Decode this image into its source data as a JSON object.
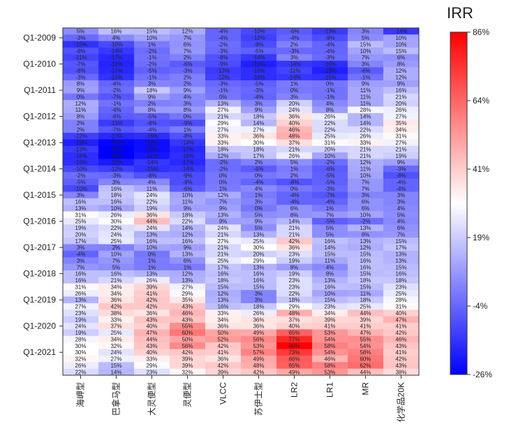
{
  "chart_data": {
    "type": "heatmap",
    "colorbar_title": "IRR",
    "colorbar_ticks": [
      "86%",
      "64%",
      "41%",
      "19%",
      "-4%",
      "-26%"
    ],
    "color_range": [
      -26,
      86
    ],
    "colors": {
      "low": "#0000ff",
      "mid": "#ffffff",
      "high": "#ff0000"
    },
    "columns": [
      "海岬型",
      "巴拿马型",
      "大灵便型",
      "灵便型",
      "VLCC",
      "苏伊士型",
      "LR2",
      "LR1",
      "MR",
      "化学品20K"
    ],
    "row_labels": [
      {
        "row": 1,
        "label": "Q1-2009"
      },
      {
        "row": 5,
        "label": "Q1-2010"
      },
      {
        "row": 9,
        "label": "Q1-2011"
      },
      {
        "row": 13,
        "label": "Q1-2012"
      },
      {
        "row": 17,
        "label": "Q1-2013"
      },
      {
        "row": 21,
        "label": "Q1-2014"
      },
      {
        "row": 25,
        "label": "Q1-2015"
      },
      {
        "row": 29,
        "label": "Q1-2016"
      },
      {
        "row": 33,
        "label": "Q1-2017"
      },
      {
        "row": 37,
        "label": "Q1-2018"
      },
      {
        "row": 41,
        "label": "Q1-2019"
      },
      {
        "row": 45,
        "label": "Q1-2020"
      },
      {
        "row": 49,
        "label": "Q1-2021"
      }
    ],
    "values": [
      [
        5,
        16,
        15,
        12,
        -4,
        -10,
        -6,
        -13,
        3,
        -14
      ],
      [
        -3,
        4,
        10,
        7,
        -4,
        -12,
        -4,
        -9,
        5,
        10
      ],
      [
        -15,
        -10,
        1,
        6,
        -2,
        -9,
        2,
        -4,
        15,
        10
      ],
      [
        -8,
        -14,
        -2,
        7,
        -3,
        -5,
        -3,
        -4,
        10,
        15
      ],
      [
        -11,
        -17,
        -1,
        2,
        -8,
        -14,
        3,
        -3,
        7,
        6
      ],
      [
        -7,
        -18,
        -2,
        -6,
        -9,
        -19,
        -14,
        -16,
        3,
        8
      ],
      [
        -8,
        -17,
        -5,
        -3,
        -13,
        -16,
        -11,
        -19,
        -6,
        12
      ],
      [
        -3,
        -15,
        -1,
        2,
        -12,
        -16,
        -14,
        -15,
        -1,
        12
      ],
      [
        8,
        -4,
        3,
        2,
        -3,
        -5,
        1,
        0,
        9,
        9
      ],
      [
        9,
        -2,
        18,
        9,
        -1,
        -3,
        0,
        -1,
        11,
        16
      ],
      [
        0,
        -7,
        9,
        4,
        0,
        -4,
        3,
        -1,
        11,
        21
      ],
      [
        12,
        -1,
        2,
        3,
        13,
        3,
        20,
        4,
        11,
        20
      ],
      [
        11,
        -4,
        8,
        8,
        27,
        9,
        24,
        8,
        28,
        26
      ],
      [
        8,
        -6,
        -5,
        0,
        21,
        18,
        36,
        26,
        14,
        27
      ],
      [
        2,
        -13,
        -8,
        -9,
        29,
        14,
        40,
        22,
        14,
        35
      ],
      [
        2,
        -7,
        -4,
        1,
        27,
        27,
        46,
        22,
        22,
        34
      ],
      [
        -12,
        -17,
        -16,
        -8,
        33,
        36,
        48,
        25,
        26,
        31
      ],
      [
        -19,
        -25,
        -23,
        -14,
        33,
        30,
        37,
        31,
        33,
        27
      ],
      [
        -13,
        -26,
        -23,
        -17,
        18,
        18,
        21,
        20,
        21,
        21
      ],
      [
        -16,
        -28,
        -21,
        -16,
        12,
        17,
        26,
        10,
        21,
        19
      ],
      [
        -16,
        -20,
        -14,
        -17,
        -2,
        2,
        5,
        -2,
        12,
        9
      ],
      [
        -10,
        -12,
        -15,
        -14,
        -2,
        -6,
        1,
        -6,
        11,
        -3
      ],
      [
        -2,
        -3,
        -8,
        -9,
        0,
        0,
        2,
        -5,
        10,
        -8
      ],
      [
        -5,
        3,
        4,
        -9,
        0,
        -4,
        -8,
        -5,
        7,
        -4
      ],
      [
        -10,
        16,
        11,
        -6,
        1,
        4,
        0,
        -3,
        7,
        -4
      ],
      [
        3,
        18,
        24,
        10,
        12,
        1,
        -4,
        -7,
        3,
        3
      ],
      [
        16,
        16,
        22,
        11,
        7,
        3,
        -4,
        -4,
        6,
        3
      ],
      [
        13,
        10,
        19,
        9,
        9,
        0,
        6,
        1,
        6,
        4
      ],
      [
        31,
        26,
        36,
        18,
        13,
        5,
        6,
        7,
        10,
        5
      ],
      [
        25,
        30,
        44,
        22,
        9,
        9,
        14,
        -5,
        -2,
        4
      ],
      [
        19,
        22,
        24,
        14,
        24,
        5,
        21,
        5,
        13,
        6
      ],
      [
        20,
        24,
        13,
        12,
        21,
        13,
        21,
        5,
        6,
        7
      ],
      [
        17,
        25,
        16,
        16,
        27,
        25,
        42,
        16,
        13,
        15
      ],
      [
        3,
        2,
        10,
        9,
        21,
        30,
        36,
        14,
        12,
        17
      ],
      [
        -4,
        10,
        0,
        13,
        21,
        20,
        23,
        15,
        15,
        13
      ],
      [
        3,
        7,
        1,
        6,
        25,
        29,
        19,
        11,
        16,
        13
      ],
      [
        7,
        5,
        1,
        1,
        17,
        13,
        8,
        4,
        16,
        15
      ],
      [
        16,
        16,
        13,
        12,
        16,
        16,
        19,
        8,
        15,
        16
      ],
      [
        16,
        21,
        26,
        13,
        18,
        16,
        23,
        13,
        18,
        18
      ],
      [
        31,
        34,
        39,
        27,
        15,
        15,
        23,
        16,
        15,
        23
      ],
      [
        26,
        34,
        41,
        29,
        12,
        3,
        22,
        10,
        11,
        25
      ],
      [
        13,
        36,
        42,
        35,
        13,
        3,
        18,
        15,
        18,
        28
      ],
      [
        27,
        42,
        42,
        43,
        16,
        18,
        29,
        23,
        25,
        31
      ],
      [
        23,
        38,
        36,
        46,
        33,
        26,
        48,
        34,
        44,
        40
      ],
      [
        19,
        33,
        43,
        43,
        34,
        36,
        37,
        39,
        39,
        47
      ],
      [
        24,
        37,
        40,
        55,
        36,
        36,
        40,
        41,
        41,
        41
      ],
      [
        19,
        25,
        47,
        60,
        50,
        49,
        65,
        53,
        47,
        42
      ],
      [
        28,
        34,
        44,
        50,
        52,
        56,
        77,
        54,
        55,
        46
      ],
      [
        30,
        32,
        43,
        56,
        42,
        53,
        86,
        58,
        54,
        43
      ],
      [
        30,
        24,
        40,
        42,
        41,
        57,
        73,
        54,
        58,
        41
      ],
      [
        32,
        27,
        33,
        39,
        36,
        49,
        66,
        46,
        60,
        42
      ],
      [
        26,
        15,
        29,
        39,
        42,
        48,
        65,
        58,
        62,
        43
      ],
      [
        22,
        14,
        23,
        32,
        39,
        42,
        49,
        53,
        44,
        38
      ]
    ]
  }
}
